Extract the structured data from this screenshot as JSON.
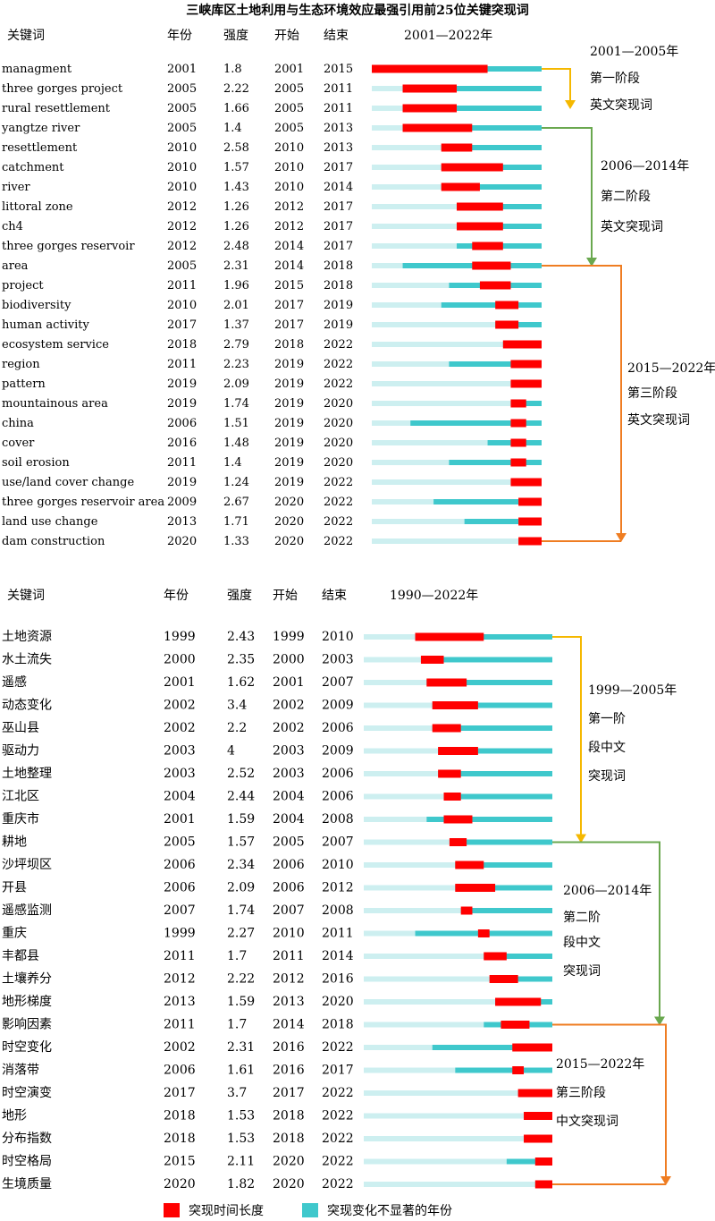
{
  "title": "三峡库区土地利用与生态环境效应最强引用前25位关键突现词",
  "colors": {
    "burst": "#ff0000",
    "nonsig": "#3fc8cc",
    "pre": "#cdeff0",
    "arrow_orange": "#f5b800",
    "arrow_green": "#6aa84f",
    "arrow_deep_orange": "#ef7d22"
  },
  "legend": {
    "burst_label": "突现时间长度",
    "nonsig_label": "突现变化不显著的年份"
  },
  "chart_data": [
    {
      "type": "table",
      "headers": {
        "keyword": "关键词",
        "year": "年份",
        "strength": "强度",
        "begin": "开始",
        "end": "结束",
        "timeline": "2001—2022年"
      },
      "range": [
        2001,
        2022
      ],
      "rows": [
        {
          "keyword": "managment",
          "year": 2001,
          "strength": "1.8",
          "begin": 2001,
          "end": 2015
        },
        {
          "keyword": "three gorges project",
          "year": 2005,
          "strength": "2.22",
          "begin": 2005,
          "end": 2011
        },
        {
          "keyword": "rural resettlement",
          "year": 2005,
          "strength": "1.66",
          "begin": 2005,
          "end": 2011
        },
        {
          "keyword": "yangtze river",
          "year": 2005,
          "strength": "1.4",
          "begin": 2005,
          "end": 2013
        },
        {
          "keyword": "resettlement",
          "year": 2010,
          "strength": "2.58",
          "begin": 2010,
          "end": 2013
        },
        {
          "keyword": "catchment",
          "year": 2010,
          "strength": "1.57",
          "begin": 2010,
          "end": 2017
        },
        {
          "keyword": "river",
          "year": 2010,
          "strength": "1.43",
          "begin": 2010,
          "end": 2014
        },
        {
          "keyword": "littoral zone",
          "year": 2012,
          "strength": "1.26",
          "begin": 2012,
          "end": 2017
        },
        {
          "keyword": "ch4",
          "year": 2012,
          "strength": "1.26",
          "begin": 2012,
          "end": 2017
        },
        {
          "keyword": "three gorges reservoir",
          "year": 2012,
          "strength": "2.48",
          "begin": 2014,
          "end": 2017
        },
        {
          "keyword": "area",
          "year": 2005,
          "strength": "2.31",
          "begin": 2014,
          "end": 2018
        },
        {
          "keyword": "project",
          "year": 2011,
          "strength": "1.96",
          "begin": 2015,
          "end": 2018
        },
        {
          "keyword": "biodiversity",
          "year": 2010,
          "strength": "2.01",
          "begin": 2017,
          "end": 2019
        },
        {
          "keyword": "human activity",
          "year": 2017,
          "strength": "1.37",
          "begin": 2017,
          "end": 2019
        },
        {
          "keyword": "ecosystem service",
          "year": 2018,
          "strength": "2.79",
          "begin": 2018,
          "end": 2022
        },
        {
          "keyword": "region",
          "year": 2011,
          "strength": "2.23",
          "begin": 2019,
          "end": 2022
        },
        {
          "keyword": "pattern",
          "year": 2019,
          "strength": "2.09",
          "begin": 2019,
          "end": 2022
        },
        {
          "keyword": "mountainous area",
          "year": 2019,
          "strength": "1.74",
          "begin": 2019,
          "end": 2020
        },
        {
          "keyword": "china",
          "year": 2006,
          "strength": "1.51",
          "begin": 2019,
          "end": 2020
        },
        {
          "keyword": "cover",
          "year": 2016,
          "strength": "1.48",
          "begin": 2019,
          "end": 2020
        },
        {
          "keyword": "soil erosion",
          "year": 2011,
          "strength": "1.4",
          "begin": 2019,
          "end": 2020
        },
        {
          "keyword": "use/land cover change",
          "year": 2019,
          "strength": "1.24",
          "begin": 2019,
          "end": 2022
        },
        {
          "keyword": "three gorges reservoir area",
          "year": 2009,
          "strength": "2.67",
          "begin": 2020,
          "end": 2022
        },
        {
          "keyword": "land use change",
          "year": 2013,
          "strength": "1.71",
          "begin": 2020,
          "end": 2022
        },
        {
          "keyword": "dam construction",
          "year": 2020,
          "strength": "1.33",
          "begin": 2020,
          "end": 2022
        }
      ],
      "stages": [
        {
          "lines": [
            "2001—2005年",
            "第一阶段",
            "英文突现词"
          ]
        },
        {
          "lines": [
            "2006—2014年",
            "第二阶段",
            "英文突现词"
          ]
        },
        {
          "lines": [
            "2015—2022年",
            "第三阶段",
            "英文突现词"
          ]
        }
      ]
    },
    {
      "type": "table",
      "headers": {
        "keyword": "关键词",
        "year": "年份",
        "strength": "强度",
        "begin": "开始",
        "end": "结束",
        "timeline": "1990—2022年"
      },
      "range": [
        1990,
        2022
      ],
      "rows": [
        {
          "keyword": "土地资源",
          "year": 1999,
          "strength": "2.43",
          "begin": 1999,
          "end": 2010
        },
        {
          "keyword": "水土流失",
          "year": 2000,
          "strength": "2.35",
          "begin": 2000,
          "end": 2003
        },
        {
          "keyword": "遥感",
          "year": 2001,
          "strength": "1.62",
          "begin": 2001,
          "end": 2007
        },
        {
          "keyword": "动态变化",
          "year": 2002,
          "strength": "3.4",
          "begin": 2002,
          "end": 2009
        },
        {
          "keyword": "巫山县",
          "year": 2002,
          "strength": "2.2",
          "begin": 2002,
          "end": 2006
        },
        {
          "keyword": "驱动力",
          "year": 2003,
          "strength": "4",
          "begin": 2003,
          "end": 2009
        },
        {
          "keyword": "土地整理",
          "year": 2003,
          "strength": "2.52",
          "begin": 2003,
          "end": 2006
        },
        {
          "keyword": "江北区",
          "year": 2004,
          "strength": "2.44",
          "begin": 2004,
          "end": 2006
        },
        {
          "keyword": "重庆市",
          "year": 2001,
          "strength": "1.59",
          "begin": 2004,
          "end": 2008
        },
        {
          "keyword": "耕地",
          "year": 2005,
          "strength": "1.57",
          "begin": 2005,
          "end": 2007
        },
        {
          "keyword": "沙坪坝区",
          "year": 2006,
          "strength": "2.34",
          "begin": 2006,
          "end": 2010
        },
        {
          "keyword": "开县",
          "year": 2006,
          "strength": "2.09",
          "begin": 2006,
          "end": 2012
        },
        {
          "keyword": "遥感监测",
          "year": 2007,
          "strength": "1.74",
          "begin": 2007,
          "end": 2008
        },
        {
          "keyword": "重庆",
          "year": 1999,
          "strength": "2.27",
          "begin": 2010,
          "end": 2011
        },
        {
          "keyword": "丰都县",
          "year": 2011,
          "strength": "1.7",
          "begin": 2011,
          "end": 2014
        },
        {
          "keyword": "土壤养分",
          "year": 2012,
          "strength": "2.22",
          "begin": 2012,
          "end": 2016
        },
        {
          "keyword": "地形梯度",
          "year": 2013,
          "strength": "1.59",
          "begin": 2013,
          "end": 2020
        },
        {
          "keyword": "影响因素",
          "year": 2011,
          "strength": "1.7",
          "begin": 2014,
          "end": 2018
        },
        {
          "keyword": "时空变化",
          "year": 2002,
          "strength": "2.31",
          "begin": 2016,
          "end": 2022
        },
        {
          "keyword": "消落带",
          "year": 2006,
          "strength": "1.61",
          "begin": 2016,
          "end": 2017
        },
        {
          "keyword": "时空演变",
          "year": 2017,
          "strength": "3.7",
          "begin": 2017,
          "end": 2022
        },
        {
          "keyword": "地形",
          "year": 2018,
          "strength": "1.53",
          "begin": 2018,
          "end": 2022
        },
        {
          "keyword": "分布指数",
          "year": 2018,
          "strength": "1.53",
          "begin": 2018,
          "end": 2022
        },
        {
          "keyword": "时空格局",
          "year": 2015,
          "strength": "2.11",
          "begin": 2020,
          "end": 2022
        },
        {
          "keyword": "生境质量",
          "year": 2020,
          "strength": "1.82",
          "begin": 2020,
          "end": 2022
        }
      ],
      "stages": [
        {
          "lines": [
            "1999—2005年",
            "第一阶",
            "段中文",
            "突现词"
          ]
        },
        {
          "lines": [
            "2006—2014年",
            "第二阶",
            "段中文",
            "突现词"
          ]
        },
        {
          "lines": [
            "2015—2022年",
            "第三阶段",
            "中文突现词"
          ]
        }
      ]
    }
  ]
}
